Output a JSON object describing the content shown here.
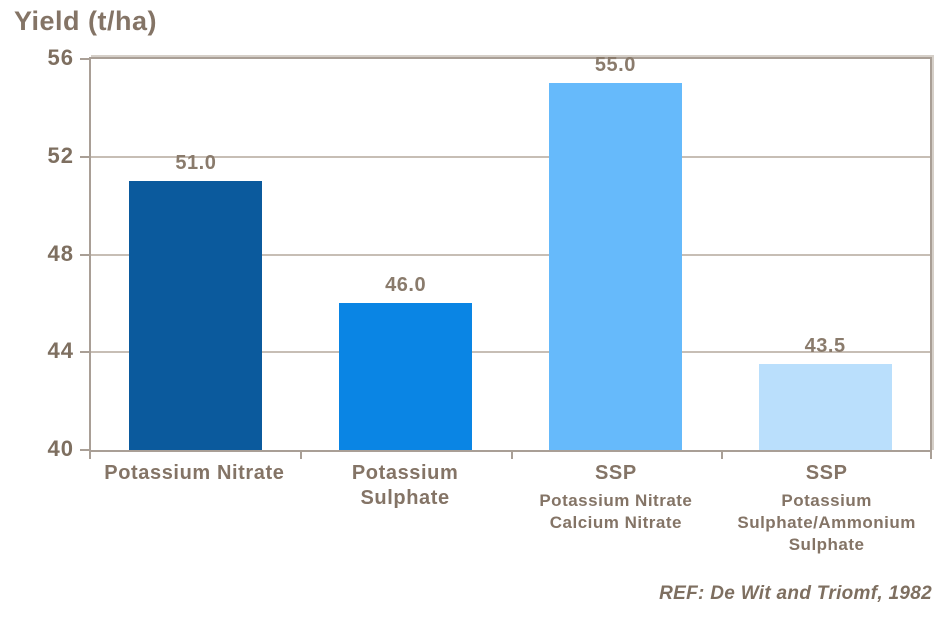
{
  "chart_data": {
    "type": "bar",
    "title": "",
    "ylabel": "Yield (t/ha)",
    "xlabel": "",
    "ylim": [
      40,
      56
    ],
    "yticks": [
      40,
      44,
      48,
      52,
      56
    ],
    "grid": "horizontal",
    "legend": "none",
    "annotation": "REF: De Wit and Triomf, 1982",
    "values": [
      51.0,
      46.0,
      55.0,
      43.5
    ],
    "categories": [
      {
        "name": "Potassium Nitrate",
        "label_lines": [
          "Potassium Nitrate"
        ],
        "sub_lines": [],
        "value": 51.0,
        "value_label": "51.0",
        "color": "#0B5A9D"
      },
      {
        "name": "Potassium Sulphate",
        "label_lines": [
          "Potassium",
          "Sulphate"
        ],
        "sub_lines": [],
        "value": 46.0,
        "value_label": "46.0",
        "color": "#0A85E4"
      },
      {
        "name": "SSP Potassium Nitrate Calcium Nitrate",
        "label_lines": [
          "SSP"
        ],
        "sub_lines": [
          "Potassium Nitrate",
          "Calcium Nitrate"
        ],
        "value": 55.0,
        "value_label": "55.0",
        "color": "#66BAFB"
      },
      {
        "name": "SSP Potassium Sulphate/Ammonium Sulphate",
        "label_lines": [
          "SSP"
        ],
        "sub_lines": [
          "Potassium",
          "Sulphate/Ammonium",
          "Sulphate"
        ],
        "value": 43.5,
        "value_label": "43.5",
        "color": "#BADFFC"
      }
    ]
  }
}
